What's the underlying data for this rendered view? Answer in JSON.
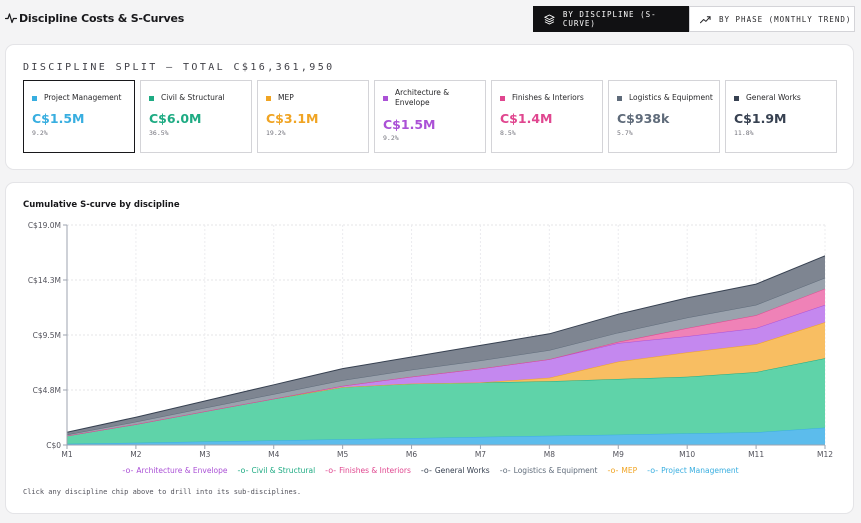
{
  "header": {
    "title": "Discipline Costs & S-Curves",
    "tabs": [
      {
        "label": "BY DISCIPLINE (S-CURVE)",
        "active": true
      },
      {
        "label": "BY PHASE (MONTHLY TREND)",
        "active": false
      }
    ]
  },
  "split": {
    "title": "DISCIPLINE SPLIT — TOTAL C$16,361,950",
    "chips": [
      {
        "name": "Project Management",
        "value": "C$1.5M",
        "pct": "9.2%",
        "color": "#38aee0",
        "selected": true
      },
      {
        "name": "Civil & Structural",
        "value": "C$6.0M",
        "pct": "36.5%",
        "color": "#1eab83",
        "selected": false
      },
      {
        "name": "MEP",
        "value": "C$3.1M",
        "pct": "19.2%",
        "color": "#f0a423",
        "selected": false
      },
      {
        "name": "Architecture & Envelope",
        "value": "C$1.5M",
        "pct": "9.2%",
        "color": "#ab51d6",
        "selected": false
      },
      {
        "name": "Finishes & Interiors",
        "value": "C$1.4M",
        "pct": "8.5%",
        "color": "#e0468f",
        "selected": false
      },
      {
        "name": "Logistics & Equipment",
        "value": "C$938k",
        "pct": "5.7%",
        "color": "#5f6b7a",
        "selected": false
      },
      {
        "name": "General Works",
        "value": "C$1.9M",
        "pct": "11.8%",
        "color": "#374151",
        "selected": false
      }
    ]
  },
  "chart_section": {
    "title": "Cumulative S-curve by discipline",
    "hint": "Click any discipline chip above to drill into its sub-disciplines."
  },
  "chart_data": {
    "type": "area",
    "stacked": true,
    "categories": [
      "M1",
      "M2",
      "M3",
      "M4",
      "M5",
      "M6",
      "M7",
      "M8",
      "M9",
      "M10",
      "M11",
      "M12"
    ],
    "y_ticks": [
      "C$0",
      "C$4.8M",
      "C$9.5M",
      "C$14.3M",
      "C$19.0M"
    ],
    "ylim": [
      0,
      19.0
    ],
    "unit": "C$M",
    "grid": true,
    "legend_position": "bottom",
    "series": [
      {
        "name": "Project Management",
        "color": "#38aee0",
        "fill": "#5cbcec",
        "values": [
          0.1,
          0.2,
          0.3,
          0.4,
          0.5,
          0.6,
          0.7,
          0.8,
          0.9,
          1.0,
          1.1,
          1.5
        ]
      },
      {
        "name": "Civil & Structural",
        "color": "#1eab83",
        "fill": "#5fd3a9",
        "values": [
          0.7,
          1.6,
          2.6,
          3.6,
          4.5,
          4.7,
          4.7,
          4.7,
          4.8,
          4.9,
          5.2,
          6.0
        ]
      },
      {
        "name": "MEP",
        "color": "#f0a423",
        "fill": "#f8be62",
        "values": [
          0.0,
          0.0,
          0.0,
          0.0,
          0.0,
          0.0,
          0.0,
          0.3,
          1.5,
          2.1,
          2.4,
          3.1
        ]
      },
      {
        "name": "Architecture & Envelope",
        "color": "#ab51d6",
        "fill": "#c488ef",
        "values": [
          0.0,
          0.0,
          0.0,
          0.0,
          0.1,
          0.6,
          1.2,
          1.6,
          1.6,
          1.4,
          1.4,
          1.5
        ]
      },
      {
        "name": "Finishes & Interiors",
        "color": "#e0468f",
        "fill": "#ef82b7",
        "values": [
          0.0,
          0.0,
          0.0,
          0.0,
          0.0,
          0.0,
          0.0,
          0.0,
          0.1,
          0.7,
          1.1,
          1.4
        ]
      },
      {
        "name": "Logistics & Equipment",
        "color": "#5f6b7a",
        "fill": "#9aa2ad",
        "values": [
          0.1,
          0.2,
          0.3,
          0.4,
          0.5,
          0.6,
          0.7,
          0.8,
          0.8,
          0.9,
          0.9,
          0.94
        ]
      },
      {
        "name": "General Works",
        "color": "#374151",
        "fill": "#7e8591",
        "values": [
          0.2,
          0.4,
          0.6,
          0.8,
          1.0,
          1.1,
          1.3,
          1.4,
          1.6,
          1.7,
          1.8,
          1.9
        ]
      }
    ],
    "legend_order": [
      "Architecture & Envelope",
      "Civil & Structural",
      "Finishes & Interiors",
      "General Works",
      "Logistics & Equipment",
      "MEP",
      "Project Management"
    ]
  }
}
